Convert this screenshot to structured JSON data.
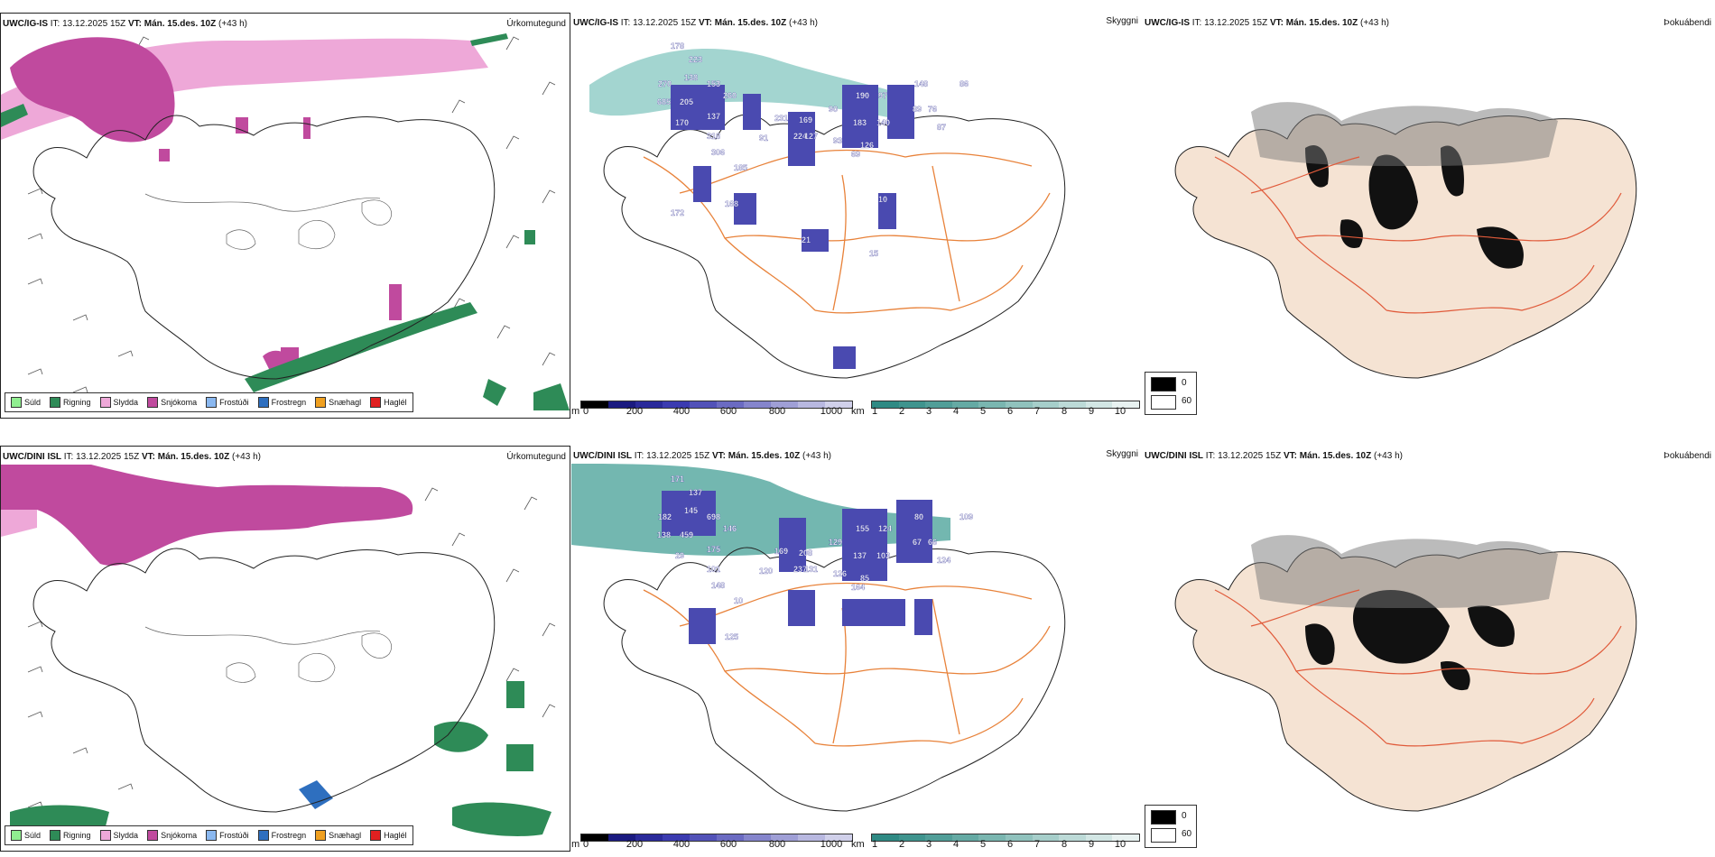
{
  "rows": [
    {
      "model": "UWC/IG-IS",
      "it_label": "IT:",
      "it_value": "13.12.2025 15Z",
      "vt_label": "VT:",
      "vt_value": "Mán. 15.des. 10Z",
      "lead": "(+43 h)",
      "precip_title": "Úrkomutegund",
      "ceiling_title": "Skyggni",
      "fog_title": "Þokuábendi",
      "labels": [
        "178",
        "223",
        "270",
        "138",
        "153",
        "260",
        "685",
        "205",
        "137",
        "170",
        "318",
        "306",
        "231",
        "169",
        "224",
        "127",
        "91",
        "90",
        "190",
        "97",
        "183",
        "140",
        "126",
        "89",
        "76",
        "148",
        "86",
        "87",
        "93",
        "69",
        "185",
        "168",
        "172",
        "21",
        "10",
        "15"
      ]
    },
    {
      "model": "UWC/DINI ISL",
      "it_label": "IT:",
      "it_value": "13.12.2025 15Z",
      "vt_label": "VT:",
      "vt_value": "Mán. 15.des. 10Z",
      "lead": "(+43 h)",
      "precip_title": "Úrkomutegund",
      "ceiling_title": "Skyggni",
      "fog_title": "Þokuábendi",
      "labels": [
        "171",
        "137",
        "182",
        "145",
        "698",
        "146",
        "138",
        "459",
        "175",
        "29",
        "101",
        "148",
        "169",
        "208",
        "237",
        "131",
        "120",
        "129",
        "155",
        "124",
        "137",
        "103",
        "85",
        "67",
        "66",
        "80",
        "109",
        "124",
        "126",
        "164",
        "10",
        "125"
      ]
    }
  ],
  "precip_legend": [
    {
      "label": "Súld",
      "color": "#90ee90"
    },
    {
      "label": "Rigning",
      "color": "#2e8b57"
    },
    {
      "label": "Slydda",
      "color": "#eea8d8"
    },
    {
      "label": "Snjókoma",
      "color": "#c04a9e"
    },
    {
      "label": "Frostúði",
      "color": "#8ab8f0"
    },
    {
      "label": "Frostregn",
      "color": "#2e6fbf"
    },
    {
      "label": "Snæhagl",
      "color": "#f0a020"
    },
    {
      "label": "Haglél",
      "color": "#e02020"
    }
  ],
  "height_bar": {
    "unit": "m",
    "ticks": [
      "0",
      "200",
      "400",
      "600",
      "800",
      "1000"
    ],
    "colors": [
      "#000000",
      "#1a1a80",
      "#2a2a9a",
      "#3b3bb0",
      "#5252b8",
      "#6b6bc2",
      "#8585cc",
      "#9f9fd6",
      "#b8b8e0",
      "#d0d0ea"
    ]
  },
  "vis_bar": {
    "unit": "km",
    "ticks": [
      "1",
      "2",
      "3",
      "4",
      "5",
      "6",
      "7",
      "8",
      "9",
      "10"
    ],
    "colors": [
      "#2f8a84",
      "#3f948e",
      "#519e98",
      "#65aaa4",
      "#7ab6b0",
      "#90c2bd",
      "#a6ceca",
      "#bcdad7",
      "#d2e6e4",
      "#e8f2f1"
    ]
  },
  "fog_legend": {
    "high": "0",
    "low": "60",
    "high_color": "#000000",
    "low_color": "#ffffff"
  },
  "colors": {
    "snow": "#c04a9e",
    "sleet": "#eea8d8",
    "rain": "#2e8b57",
    "road": "#e8823a",
    "land": "#f5e3d3",
    "teal": "#5aaaa2"
  }
}
